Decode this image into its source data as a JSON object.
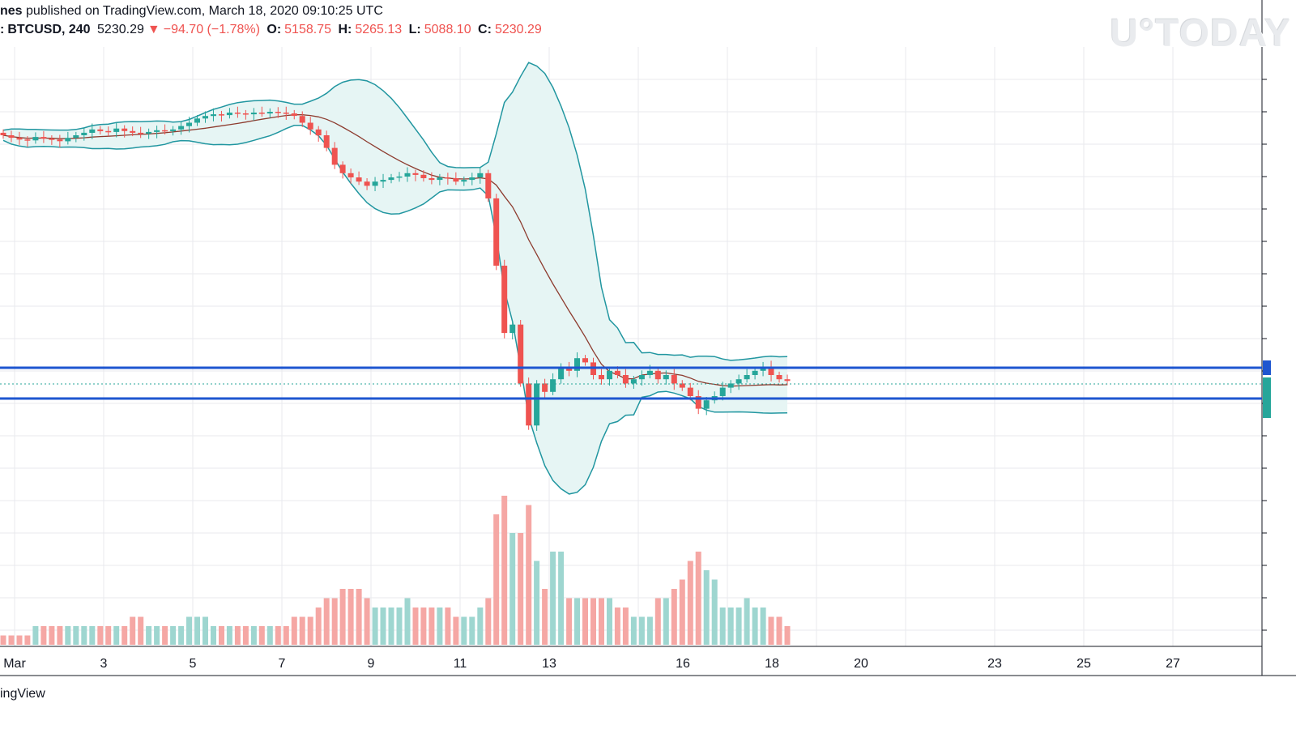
{
  "header": {
    "author_fragment": "nes",
    "published_text": " published on TradingView.com, March 18, 2020 09:10:25 UTC",
    "symbol": "BTCUSD, 240",
    "symbol_prefix": ":",
    "last": "5230.29",
    "arrow": "▼",
    "change": "−94.70 (−1.78%)",
    "o_label": "O:",
    "o_value": "5158.75",
    "h_label": "H:",
    "h_value": "5265.13",
    "l_label": "L:",
    "l_value": "5088.10",
    "c_label": "C:",
    "c_value": "5230.29"
  },
  "watermark": "U°TODAY",
  "footer_text": "ingView",
  "colors": {
    "up": "#26a69a",
    "down": "#ef5350",
    "up_volume": "#9ed6d0",
    "down_volume": "#f5a7a4",
    "bollinger": "#2196a0",
    "bollinger_fill": "#e6f5f4",
    "basis": "#8d3b2e",
    "support_lines": "#1e56d0",
    "grid": "#e8eaed"
  },
  "chart_data": {
    "type": "candlestick",
    "symbol": "BTCUSD",
    "interval": "240",
    "x_tick_labels": [
      "Mar",
      "3",
      "5",
      "7",
      "9",
      "11",
      "13",
      "16",
      "18",
      "20",
      "23",
      "25",
      "27"
    ],
    "price_range_approx": [
      4000,
      9200
    ],
    "horizontal_levels": [
      5450,
      5000
    ],
    "series": [
      {
        "name": "price",
        "close_approx": [
          8150,
          8120,
          8100,
          8090,
          8130,
          8110,
          8100,
          8080,
          8120,
          8150,
          8180,
          8220,
          8200,
          8190,
          8230,
          8200,
          8180,
          8170,
          8190,
          8210,
          8200,
          8220,
          8260,
          8300,
          8350,
          8380,
          8400,
          8390,
          8420,
          8410,
          8400,
          8420,
          8410,
          8430,
          8420,
          8410,
          8380,
          8300,
          8220,
          8150,
          8000,
          7800,
          7700,
          7650,
          7600,
          7550,
          7600,
          7620,
          7650,
          7660,
          7700,
          7680,
          7640,
          7620,
          7650,
          7640,
          7600,
          7620,
          7650,
          7700,
          7400,
          6600,
          5800,
          5900,
          5200,
          4700,
          5200,
          5100,
          5250,
          5400,
          5350,
          5500,
          5450,
          5300,
          5250,
          5350,
          5300,
          5200,
          5250,
          5300,
          5350,
          5250,
          5300,
          5200,
          5150,
          5050,
          4900,
          5000,
          5050,
          5150,
          5200,
          5250,
          5300,
          5350,
          5400,
          5300,
          5250,
          5230
        ]
      },
      {
        "name": "volume",
        "values_rel": [
          1,
          1,
          1,
          1,
          2,
          2,
          2,
          2,
          2,
          2,
          2,
          2,
          2,
          2,
          2,
          2,
          3,
          3,
          2,
          2,
          2,
          2,
          2,
          3,
          3,
          3,
          2,
          2,
          2,
          2,
          2,
          2,
          2,
          2,
          2,
          2,
          3,
          3,
          3,
          4,
          5,
          5,
          6,
          6,
          6,
          5,
          4,
          4,
          4,
          4,
          5,
          4,
          4,
          4,
          4,
          4,
          3,
          3,
          3,
          4,
          5,
          14,
          16,
          12,
          12,
          15,
          9,
          6,
          10,
          10,
          5,
          5,
          5,
          5,
          5,
          5,
          4,
          4,
          3,
          3,
          3,
          5,
          5,
          6,
          7,
          9,
          10,
          8,
          7,
          4,
          4,
          4,
          5,
          4,
          4,
          3,
          3,
          2
        ]
      }
    ]
  }
}
